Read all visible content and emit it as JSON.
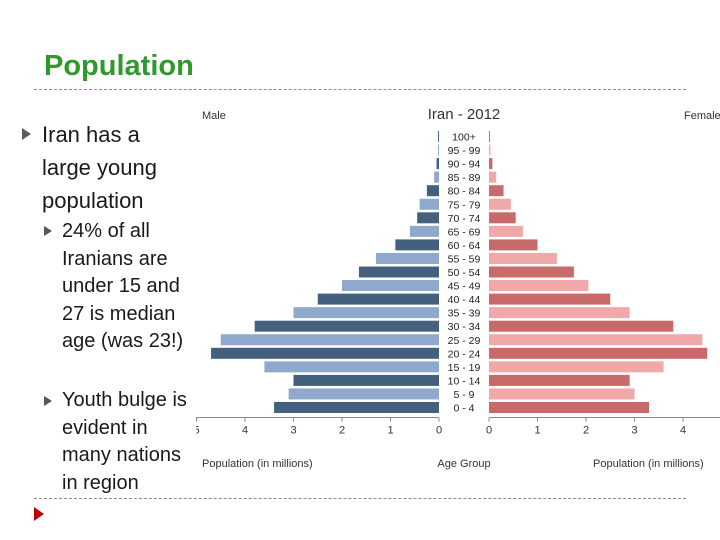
{
  "slide": {
    "title": "Population",
    "bullet_main": "Iran has a large young population",
    "sub_bullets": [
      "24% of all Iranians are under 15 and 27 is median age (was 23!)",
      "Youth bulge is evident in many nations in region"
    ]
  },
  "colors": {
    "title": "#2e9a2e",
    "male_dark": "#44607f",
    "male_light": "#8ea9cc",
    "female_dark": "#c96a6a",
    "female_light": "#f0a8a8"
  },
  "chart_data": {
    "type": "bar",
    "subtype": "population-pyramid",
    "title": "Iran - 2012",
    "left_label": "Male",
    "right_label": "Female",
    "center_label": "Age Group",
    "xlabel_left": "Population (in millions)",
    "xlabel_right": "Population (in millions)",
    "male_ticks": [
      "5",
      "4",
      "3",
      "2",
      "1",
      "0"
    ],
    "female_ticks": [
      "0",
      "1",
      "2",
      "3",
      "4"
    ],
    "xlim": [
      0,
      5
    ],
    "categories": [
      "100+",
      "95 - 99",
      "90 - 94",
      "85 - 89",
      "80 - 84",
      "75 - 79",
      "70 - 74",
      "65 - 69",
      "60 - 64",
      "55 - 59",
      "50 - 54",
      "45 - 49",
      "40 - 44",
      "35 - 39",
      "30 - 34",
      "25 - 29",
      "20 - 24",
      "15 - 19",
      "10 - 14",
      "5 - 9",
      "0 - 4"
    ],
    "series": [
      {
        "name": "Male",
        "values": [
          0.02,
          0.02,
          0.05,
          0.1,
          0.25,
          0.4,
          0.45,
          0.6,
          0.9,
          1.3,
          1.65,
          2.0,
          2.5,
          3.0,
          3.8,
          4.5,
          4.7,
          3.6,
          3.0,
          3.1,
          3.4
        ]
      },
      {
        "name": "Female",
        "values": [
          0.02,
          0.03,
          0.07,
          0.15,
          0.3,
          0.45,
          0.55,
          0.7,
          1.0,
          1.4,
          1.75,
          2.05,
          2.5,
          2.9,
          3.8,
          4.4,
          4.5,
          3.6,
          2.9,
          3.0,
          3.3
        ]
      }
    ]
  }
}
